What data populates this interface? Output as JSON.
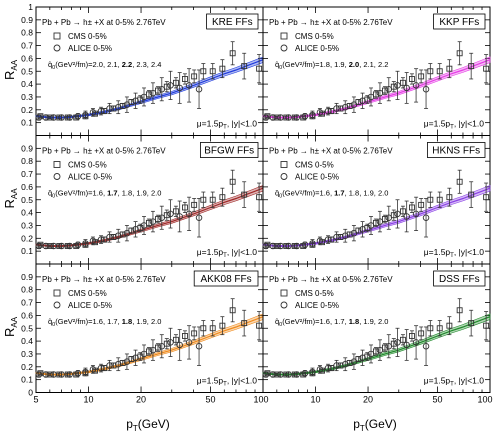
{
  "figure": {
    "y_axis_label": "R",
    "y_axis_label_sub": "AA",
    "x_axis_label": "p",
    "x_axis_label_sub": "T",
    "x_axis_label_unit": "(GeV)",
    "y_ticks": [
      "0",
      "0.1",
      "0.2",
      "0.3",
      "0.4",
      "0.5",
      "0.6",
      "0.7",
      "0.8",
      "0.9",
      "1"
    ],
    "x_ticks_left": [
      "5",
      "10",
      "20",
      "50",
      "100"
    ],
    "x_ticks_right": [
      "10",
      "20",
      "50",
      "100"
    ],
    "process_label": "Pb + Pb → h± +X at 0-5% 2.76TeV",
    "cms_label": "CMS  0-5%",
    "alice_label": "ALICE  0-5%",
    "scale_label": "μ=1.5p",
    "scale_label_sub": "T",
    "scale_label_tail": ", |y|<1.0",
    "q_label_prefix": "q̂",
    "q_label_sub": "0",
    "q_label_units": "(GeV²/fm)=",
    "colors": {
      "frame": "#000000",
      "KRE": "#1f3bdc",
      "KKP": "#e63ae6",
      "BFGW": "#a02828",
      "HKNS": "#8a3fe6",
      "AKK08": "#f08a1a",
      "DSS": "#1f8a2a"
    }
  },
  "chart_data": [
    {
      "type": "line",
      "ff": "KRE FFs",
      "q0_values": [
        "2.0",
        "2.1",
        "2.2",
        "2.3",
        "2.4"
      ],
      "q0_best": "2.2",
      "color_key": "KRE",
      "ylim": [
        0,
        1
      ],
      "xlim": [
        5,
        100
      ],
      "xscale": "log"
    },
    {
      "type": "line",
      "ff": "KKP FFs",
      "q0_values": [
        "1.8",
        "1.9",
        "2.0",
        "2.1",
        "2.2"
      ],
      "q0_best": "2.0",
      "color_key": "KKP",
      "ylim": [
        0,
        1
      ],
      "xlim": [
        5,
        100
      ],
      "xscale": "log"
    },
    {
      "type": "line",
      "ff": "BFGW FFs",
      "q0_values": [
        "1.6",
        "1.7",
        "1.8",
        "1.9",
        "2.0"
      ],
      "q0_best": "1.7",
      "color_key": "BFGW",
      "ylim": [
        0,
        1
      ],
      "xlim": [
        5,
        100
      ],
      "xscale": "log"
    },
    {
      "type": "line",
      "ff": "HKNS FFs",
      "q0_values": [
        "1.6",
        "1.7",
        "1.8",
        "1.9",
        "2.0"
      ],
      "q0_best": "1.7",
      "color_key": "HKNS",
      "ylim": [
        0,
        1
      ],
      "xlim": [
        5,
        100
      ],
      "xscale": "log"
    },
    {
      "type": "line",
      "ff": "AKK08 FFs",
      "q0_values": [
        "1.6",
        "1.7",
        "1.8",
        "1.9",
        "2.0"
      ],
      "q0_best": "1.8",
      "color_key": "AKK08",
      "ylim": [
        0,
        1
      ],
      "xlim": [
        5,
        100
      ],
      "xscale": "log"
    },
    {
      "type": "line",
      "ff": "DSS FFs",
      "q0_values": [
        "1.6",
        "1.7",
        "1.8",
        "1.9",
        "2.0"
      ],
      "q0_best": "1.8",
      "color_key": "DSS",
      "ylim": [
        0,
        1
      ],
      "xlim": [
        5,
        100
      ],
      "xscale": "log"
    }
  ],
  "measurements": {
    "cms": {
      "x": [
        5.3,
        6.0,
        6.8,
        7.6,
        8.5,
        9.6,
        10.9,
        12.3,
        13.9,
        15.7,
        17.6,
        19.8,
        22.2,
        25.0,
        28.1,
        31.7,
        35.7,
        40.3,
        45.5,
        51.5,
        58.5,
        67.0,
        78.0,
        95.0
      ],
      "y": [
        0.15,
        0.14,
        0.14,
        0.14,
        0.14,
        0.15,
        0.17,
        0.19,
        0.21,
        0.23,
        0.26,
        0.28,
        0.32,
        0.35,
        0.38,
        0.41,
        0.44,
        0.46,
        0.5,
        0.5,
        0.52,
        0.64,
        0.54,
        0.52
      ],
      "err": [
        0.01,
        0.01,
        0.01,
        0.01,
        0.01,
        0.01,
        0.01,
        0.02,
        0.02,
        0.02,
        0.02,
        0.03,
        0.03,
        0.03,
        0.04,
        0.04,
        0.04,
        0.05,
        0.06,
        0.06,
        0.07,
        0.09,
        0.1,
        0.11
      ]
    },
    "alice": {
      "x": [
        5.2,
        5.7,
        6.3,
        7.0,
        7.8,
        8.7,
        9.6,
        10.6,
        11.8,
        13.2,
        14.8,
        16.6,
        18.6,
        20.8,
        23.4,
        26.3,
        29.5,
        33.3,
        37.7,
        43.0
      ],
      "y": [
        0.14,
        0.14,
        0.14,
        0.14,
        0.14,
        0.15,
        0.16,
        0.18,
        0.19,
        0.21,
        0.22,
        0.24,
        0.27,
        0.3,
        0.33,
        0.36,
        0.39,
        0.37,
        0.39,
        0.36
      ],
      "err": [
        0.02,
        0.02,
        0.02,
        0.02,
        0.02,
        0.02,
        0.03,
        0.03,
        0.03,
        0.04,
        0.05,
        0.06,
        0.06,
        0.07,
        0.08,
        0.09,
        0.11,
        0.12,
        0.13,
        0.15
      ]
    },
    "theory_curve": {
      "x": [
        5,
        6,
        7,
        8,
        10,
        12,
        15,
        20,
        25,
        30,
        40,
        50,
        60,
        70,
        80,
        100
      ],
      "y": [
        0.15,
        0.14,
        0.14,
        0.145,
        0.16,
        0.18,
        0.21,
        0.26,
        0.3,
        0.33,
        0.39,
        0.44,
        0.48,
        0.51,
        0.54,
        0.59
      ],
      "band_halfwidth": [
        0.005,
        0.005,
        0.005,
        0.006,
        0.007,
        0.008,
        0.009,
        0.011,
        0.012,
        0.013,
        0.015,
        0.017,
        0.018,
        0.019,
        0.02,
        0.022
      ]
    }
  }
}
